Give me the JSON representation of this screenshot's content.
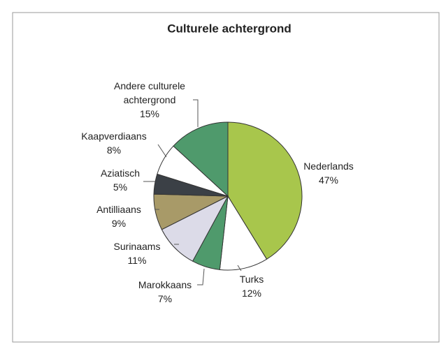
{
  "chart_data": {
    "type": "pie",
    "title": "Culturele achtergrond",
    "categories": [
      "Nederlands",
      "Turks",
      "Marokkaans",
      "Surinaams",
      "Antilliaans",
      "Aziatisch",
      "Kaapverdiaans",
      "Andere culturele achtergrond"
    ],
    "values": [
      47,
      12,
      7,
      11,
      9,
      5,
      8,
      15
    ],
    "value_labels": [
      "47%",
      "12%",
      "7%",
      "11%",
      "9%",
      "5%",
      "8%",
      "15%"
    ],
    "colors": [
      "#a8c64c",
      "#ffffff",
      "#4f9a6c",
      "#dcdbe8",
      "#a89a68",
      "#3b4046",
      "#ffffff",
      "#4f9a6c"
    ]
  }
}
